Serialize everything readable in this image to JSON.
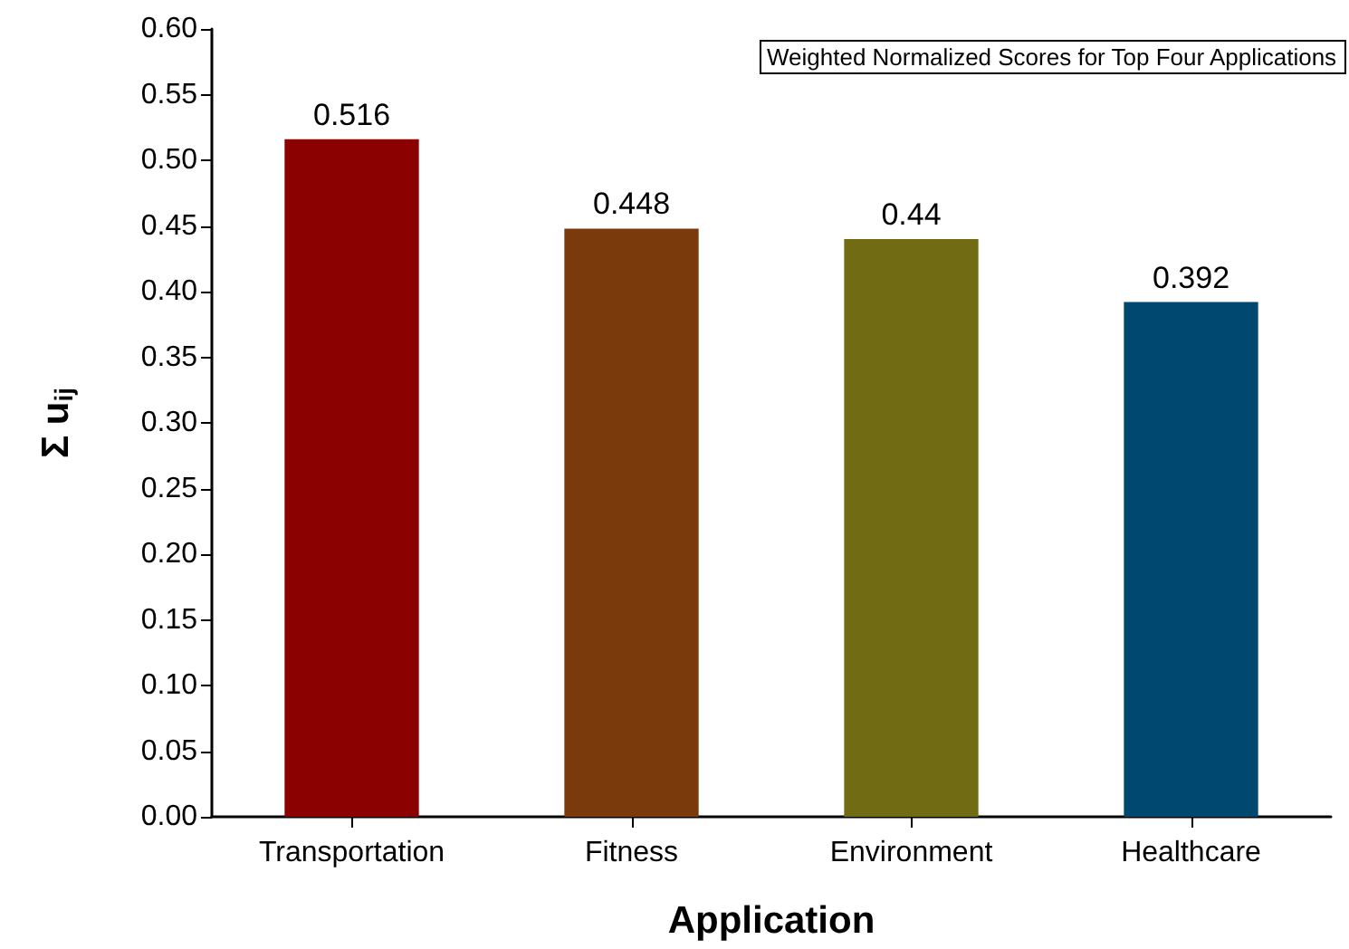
{
  "chart_data": {
    "type": "bar",
    "title": "Weighted Normalized Scores for Top Four Applications",
    "xlabel": "Application",
    "ylabel": "Σ u$_{ij}$",
    "categories": [
      "Transportation",
      "Fitness",
      "Environment",
      "Healthcare"
    ],
    "values": [
      0.516,
      0.448,
      0.44,
      0.392
    ],
    "colors": [
      "#8b0000",
      "#7a3a0c",
      "#716b14",
      "#004870"
    ],
    "ylim": [
      0,
      0.6
    ],
    "yticks": [
      {
        "value": 0,
        "label": "0.00"
      },
      {
        "value": 0.05,
        "label": "0.05"
      },
      {
        "value": 0.1,
        "label": "0.10"
      },
      {
        "value": 0.15,
        "label": "0.15"
      },
      {
        "value": 0.2,
        "label": "0.20"
      },
      {
        "value": 0.25,
        "label": "0.25"
      },
      {
        "value": 0.3,
        "label": "0.30"
      },
      {
        "value": 0.35,
        "label": "0.35"
      },
      {
        "value": 0.4,
        "label": "0.40"
      },
      {
        "value": 0.45,
        "label": "0.45"
      },
      {
        "value": 0.5,
        "label": "0.50"
      },
      {
        "value": 0.55,
        "label": "0.55"
      },
      {
        "value": 0.6,
        "label": "0.60"
      }
    ],
    "data_labels": true
  }
}
